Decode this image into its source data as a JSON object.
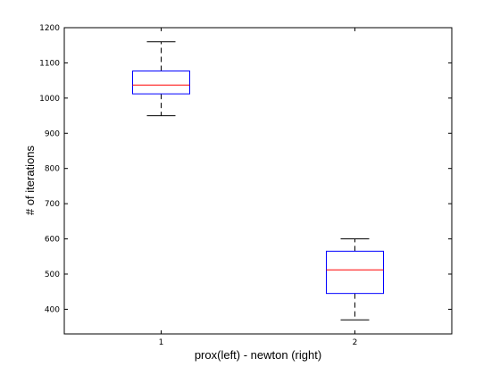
{
  "chart_data": {
    "type": "box",
    "title": "",
    "xlabel": "prox(left) - newton (right)",
    "ylabel": "# of iterations",
    "categories": [
      "1",
      "2"
    ],
    "ylim": [
      330,
      1200
    ],
    "yticks": [
      400,
      500,
      600,
      700,
      800,
      900,
      1000,
      1100,
      1200
    ],
    "boxes": [
      {
        "category": "1",
        "lower_whisker": 950,
        "q1": 1012,
        "median": 1037,
        "q3": 1077,
        "upper_whisker": 1160
      },
      {
        "category": "2",
        "lower_whisker": 370,
        "q1": 445,
        "median": 512,
        "q3": 565,
        "upper_whisker": 600
      }
    ],
    "colors": {
      "box": "#0000ff",
      "median": "#ff0000",
      "whisker": "#000000",
      "axes": "#000000"
    },
    "grid": false
  }
}
